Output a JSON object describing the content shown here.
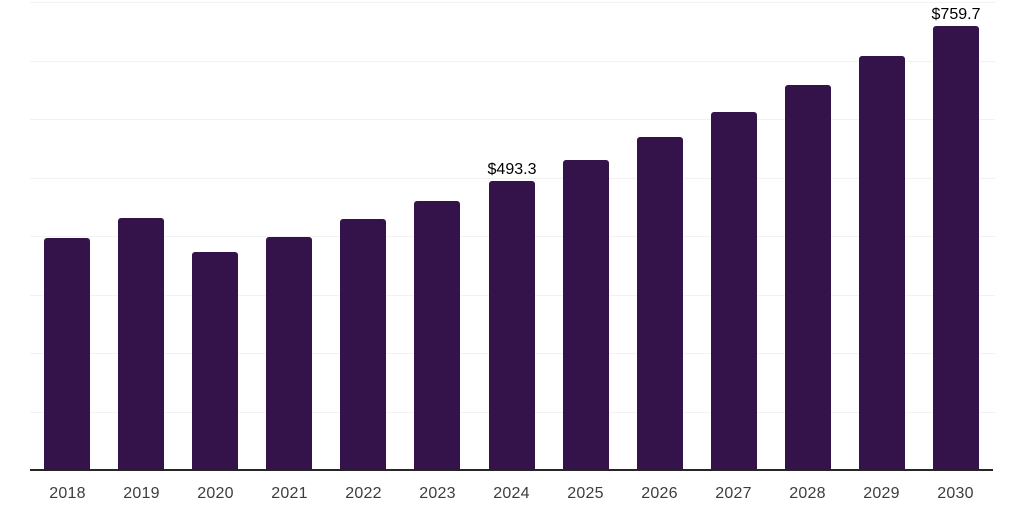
{
  "chart_data": {
    "type": "bar",
    "title": "",
    "xlabel": "",
    "ylabel": "",
    "categories": [
      "2018",
      "2019",
      "2020",
      "2021",
      "2022",
      "2023",
      "2024",
      "2025",
      "2026",
      "2027",
      "2028",
      "2029",
      "2030"
    ],
    "values": [
      397,
      431,
      372,
      399,
      429,
      460,
      493.3,
      530,
      570,
      612,
      658,
      707,
      759.7
    ],
    "value_labels": {
      "2024": "$493.3",
      "2030": "$759.7"
    },
    "ylim": [
      0,
      800
    ],
    "grid": true,
    "grid_step": 100,
    "legend": false,
    "colors": {
      "bar": "#331349",
      "gridline": "#f2f2f2",
      "axis_line": "#262626",
      "tick_label": "#3d3d3d",
      "value_label": "#000000",
      "background": "#ffffff"
    }
  }
}
